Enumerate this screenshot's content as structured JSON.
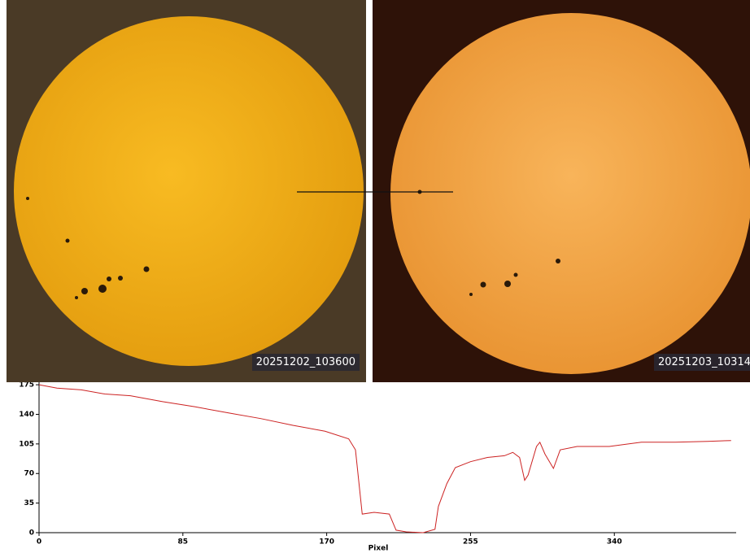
{
  "images": [
    {
      "label": "20251202_103600"
    },
    {
      "label": "20251203_10314"
    }
  ],
  "chart_data": {
    "type": "line",
    "x_label": "Pixel",
    "x": [
      0,
      10.6,
      25,
      39,
      54,
      73,
      92,
      111,
      131,
      150,
      169,
      183,
      187,
      191,
      198,
      207,
      211,
      217,
      227,
      234,
      236,
      241,
      246,
      255,
      265,
      275,
      280,
      284,
      287,
      289,
      294,
      296,
      299,
      304,
      308,
      318,
      337,
      356,
      376,
      395,
      409
    ],
    "series": [
      {
        "color": "#cc2222",
        "values": [
          175,
          171,
          169,
          164,
          162,
          155,
          149,
          142,
          135,
          127,
          120,
          111,
          98,
          22,
          24,
          22,
          3,
          1,
          0,
          4,
          31,
          58,
          77,
          84,
          89,
          91,
          95,
          89,
          62,
          68,
          102,
          107,
          93,
          76,
          98,
          102,
          102,
          107,
          107,
          108,
          109
        ]
      }
    ],
    "xlim": [
      0,
      412
    ],
    "ylim": [
      0,
      178
    ],
    "xticks": [
      0,
      85,
      170,
      255,
      340
    ],
    "yticks": [
      0,
      35,
      70,
      105,
      140,
      175
    ]
  }
}
